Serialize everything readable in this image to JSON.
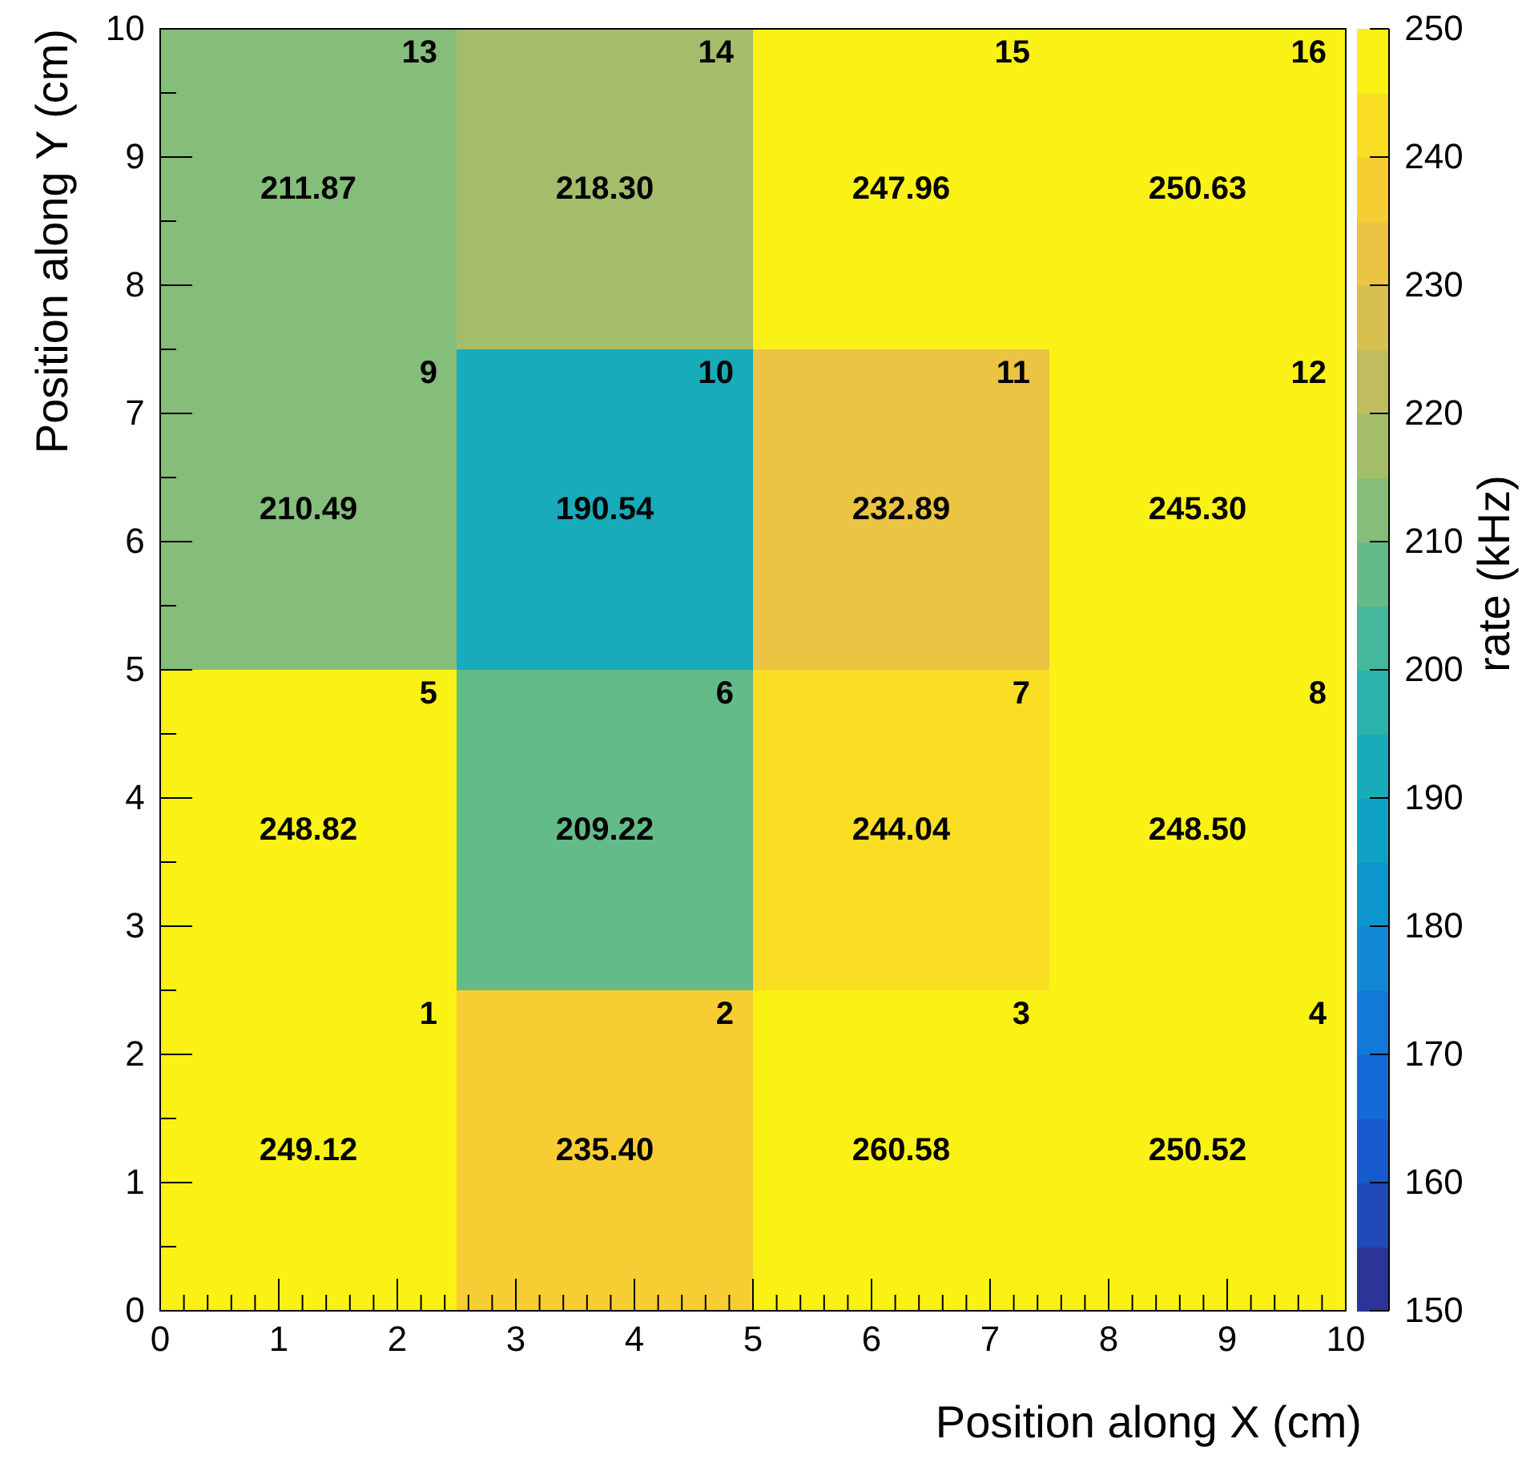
{
  "chart_data": {
    "type": "heatmap",
    "xlabel": "Position along X (cm)",
    "ylabel": "Position along Y (cm)",
    "clabel": "rate (kHz)",
    "cells": [
      [
        211.87,
        218.3,
        247.96,
        250.63
      ],
      [
        210.49,
        190.54,
        232.89,
        245.3
      ],
      [
        248.82,
        209.22,
        244.04,
        248.5
      ],
      [
        249.12,
        235.4,
        260.58,
        250.52
      ]
    ],
    "cell_labels": [
      [
        "211.87",
        "218.30",
        "247.96",
        "250.63"
      ],
      [
        "210.49",
        "190.54",
        "232.89",
        "245.30"
      ],
      [
        "248.82",
        "209.22",
        "244.04",
        "248.50"
      ],
      [
        "249.12",
        "235.40",
        "260.58",
        "250.52"
      ]
    ],
    "xlim": [
      0,
      10
    ],
    "ylim": [
      0,
      10
    ],
    "xticks": [
      0,
      {
        "value": 0.2,
        "label": null
      },
      {
        "value": 0.4,
        "label": null
      },
      {
        "value": 0.6,
        "label": null
      },
      {
        "value": 0.8,
        "label": null
      },
      1,
      {
        "value": 1.2,
        "label": null
      },
      {
        "value": 1.4,
        "label": null
      },
      {
        "value": 1.6,
        "label": null
      },
      {
        "value": 1.8,
        "label": null
      },
      2,
      {
        "value": 2.2,
        "label": null
      },
      {
        "value": 2.4,
        "label": null
      },
      {
        "value": 2.6,
        "label": null
      },
      {
        "value": 2.8,
        "label": null
      },
      3,
      {
        "value": 3.2,
        "label": null
      },
      {
        "value": 3.4,
        "label": null
      },
      {
        "value": 3.6,
        "label": null
      },
      {
        "value": 3.8,
        "label": null
      },
      4,
      {
        "value": 4.2,
        "label": null
      },
      {
        "value": 4.4,
        "label": null
      },
      {
        "value": 4.6,
        "label": null
      },
      {
        "value": 4.8,
        "label": null
      },
      5,
      {
        "value": 5.2,
        "label": null
      },
      {
        "value": 5.4,
        "label": null
      },
      {
        "value": 5.6,
        "label": null
      },
      {
        "value": 5.8,
        "label": null
      },
      6,
      {
        "value": 6.2,
        "label": null
      },
      {
        "value": 6.4,
        "label": null
      },
      {
        "value": 6.6,
        "label": null
      },
      {
        "value": 6.8,
        "label": null
      },
      7,
      {
        "value": 7.2,
        "label": null
      },
      {
        "value": 7.4,
        "label": null
      },
      {
        "value": 7.6,
        "label": null
      },
      {
        "value": 7.8,
        "label": null
      },
      8,
      {
        "value": 8.2,
        "label": null
      },
      {
        "value": 8.4,
        "label": null
      },
      {
        "value": 8.6,
        "label": null
      },
      {
        "value": 8.8,
        "label": null
      },
      9,
      {
        "value": 9.2,
        "label": null
      },
      {
        "value": 9.4,
        "label": null
      },
      {
        "value": 9.6,
        "label": null
      },
      {
        "value": 9.8,
        "label": null
      },
      10
    ],
    "yticks": [
      0,
      {
        "value": 0.5,
        "label": null
      },
      1,
      {
        "value": 1.5,
        "label": null
      },
      2,
      {
        "value": 2.5,
        "label": null
      },
      3,
      {
        "value": 3.5,
        "label": null
      },
      4,
      {
        "value": 4.5,
        "label": null
      },
      5,
      {
        "value": 5.5,
        "label": null
      },
      6,
      {
        "value": 6.5,
        "label": null
      },
      7,
      {
        "value": 7.5,
        "label": null
      },
      8,
      {
        "value": 8.5,
        "label": null
      },
      9,
      {
        "value": 9.5,
        "label": null
      },
      10
    ],
    "clim": [
      150,
      250
    ],
    "cticks": [
      150,
      160,
      170,
      180,
      190,
      200,
      210,
      220,
      230,
      240,
      250
    ],
    "annotations": [
      "13",
      "14",
      "15",
      "16",
      "9",
      "10",
      "11",
      "12",
      "5",
      "6",
      "7",
      "8",
      "1",
      "2",
      "3",
      "4"
    ]
  }
}
